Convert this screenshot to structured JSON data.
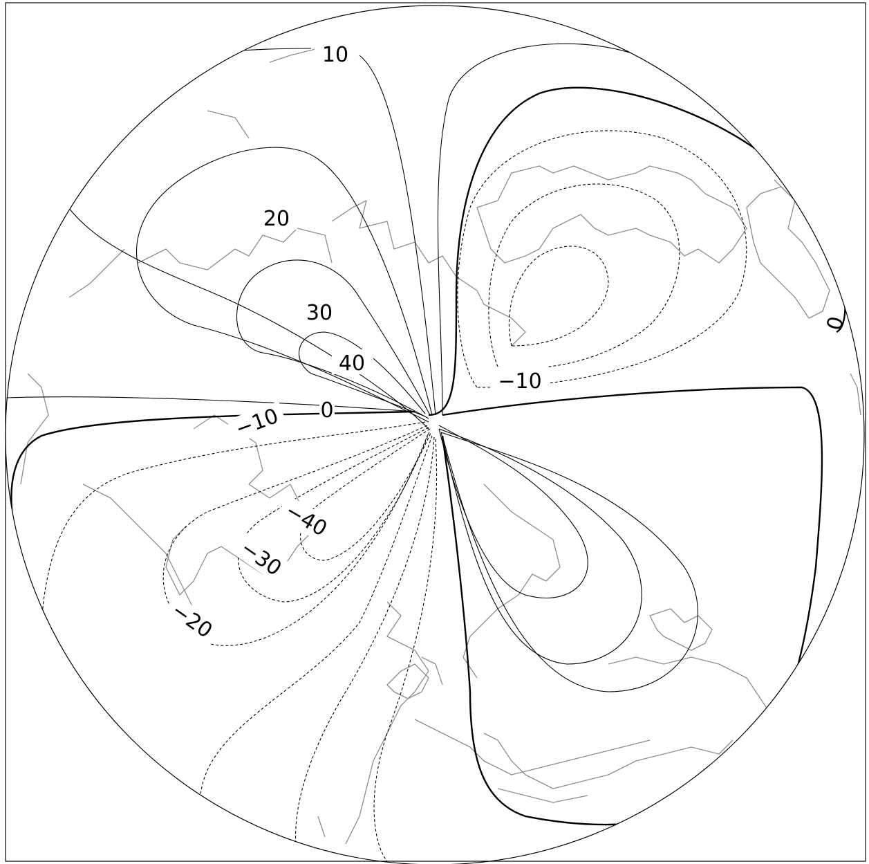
{
  "map": {
    "projection": "orthographic",
    "contour_interval": 2,
    "line_styles": {
      "positive": "solid",
      "negative": "dashed",
      "zero": "bold"
    },
    "colors": {
      "contour": "#000000",
      "coastline": "#8c8c8c",
      "background": "#ffffff"
    },
    "contour_labels": [
      {
        "id": "p10",
        "text": "10"
      },
      {
        "id": "p20",
        "text": "20"
      },
      {
        "id": "p30",
        "text": "30"
      },
      {
        "id": "p40",
        "text": "40"
      },
      {
        "id": "z0",
        "text": "0"
      },
      {
        "id": "z0e",
        "text": "0"
      },
      {
        "id": "n10a",
        "text": "−10"
      },
      {
        "id": "n10b",
        "text": "−10"
      },
      {
        "id": "n20",
        "text": "−20"
      },
      {
        "id": "n30",
        "text": "−30"
      },
      {
        "id": "n40",
        "text": "−40"
      }
    ]
  }
}
